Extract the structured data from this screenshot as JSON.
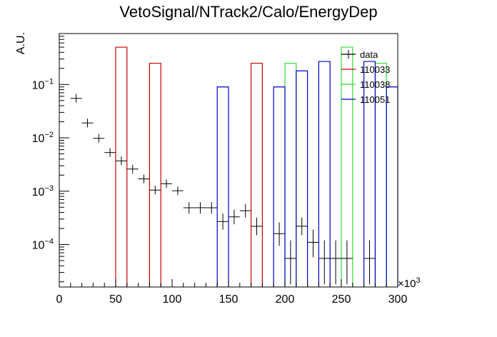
{
  "chart_data": {
    "type": "histogram",
    "title": "VetoSignal/NTrack2/Calo/EnergyDep",
    "xlabel": "",
    "ylabel": "A.U.",
    "x_multiplier_label": "×10",
    "x_multiplier_exp": "3",
    "xlim": [
      0,
      300000
    ],
    "ylim": [
      1.6e-05,
      0.9
    ],
    "yscale": "log",
    "x_ticks": [
      {
        "value": 0,
        "label": "0"
      },
      {
        "value": 50000,
        "label": "50"
      },
      {
        "value": 100000,
        "label": "100"
      },
      {
        "value": 150000,
        "label": "150"
      },
      {
        "value": 200000,
        "label": "200"
      },
      {
        "value": 250000,
        "label": "250"
      },
      {
        "value": 300000,
        "label": "300"
      }
    ],
    "y_ticks": [
      {
        "value": 0.1,
        "base": "10",
        "exp": "−1"
      },
      {
        "value": 0.01,
        "base": "10",
        "exp": "−2"
      },
      {
        "value": 0.001,
        "base": "10",
        "exp": "−3"
      },
      {
        "value": 0.0001,
        "base": "10",
        "exp": "−4"
      }
    ],
    "legend": {
      "position": "top-right",
      "entries": [
        {
          "label": "data",
          "color": "#000000",
          "style": "errorbar"
        },
        {
          "label": "110033",
          "color": "#cc0000",
          "style": "line"
        },
        {
          "label": "110038",
          "color": "#33dd33",
          "style": "line"
        },
        {
          "label": "110051",
          "color": "#0000cc",
          "style": "line"
        }
      ]
    },
    "series": [
      {
        "name": "data",
        "type": "errorbar",
        "color": "#000000",
        "bin_width": 10000,
        "points": [
          {
            "x": 15000,
            "y": 0.055,
            "ylo": 0.055,
            "yhi": 0.055
          },
          {
            "x": 25000,
            "y": 0.019,
            "ylo": 0.019,
            "yhi": 0.019
          },
          {
            "x": 35000,
            "y": 0.0098,
            "ylo": 0.0098,
            "yhi": 0.0098
          },
          {
            "x": 45000,
            "y": 0.0053,
            "ylo": 0.0053,
            "yhi": 0.0053
          },
          {
            "x": 55000,
            "y": 0.0037,
            "ylo": 0.0037,
            "yhi": 0.0037
          },
          {
            "x": 65000,
            "y": 0.0026,
            "ylo": 0.0026,
            "yhi": 0.0026
          },
          {
            "x": 75000,
            "y": 0.0017,
            "ylo": 0.00148,
            "yhi": 0.00196
          },
          {
            "x": 85000,
            "y": 0.00105,
            "ylo": 0.00088,
            "yhi": 0.00125
          },
          {
            "x": 95000,
            "y": 0.00138,
            "ylo": 0.00118,
            "yhi": 0.0016
          },
          {
            "x": 105000,
            "y": 0.00102,
            "ylo": 0.00085,
            "yhi": 0.00122
          },
          {
            "x": 115000,
            "y": 0.00049,
            "ylo": 0.00038,
            "yhi": 0.00062
          },
          {
            "x": 125000,
            "y": 0.00049,
            "ylo": 0.00038,
            "yhi": 0.00062
          },
          {
            "x": 135000,
            "y": 0.00049,
            "ylo": 0.00038,
            "yhi": 0.00062
          },
          {
            "x": 145000,
            "y": 0.00027,
            "ylo": 0.00019,
            "yhi": 0.00038
          },
          {
            "x": 155000,
            "y": 0.00033,
            "ylo": 0.00024,
            "yhi": 0.00045
          },
          {
            "x": 165000,
            "y": 0.00043,
            "ylo": 0.00032,
            "yhi": 0.00057
          },
          {
            "x": 175000,
            "y": 0.00022,
            "ylo": 0.00015,
            "yhi": 0.00032
          },
          {
            "x": 195000,
            "y": 0.00016,
            "ylo": 9.5e-05,
            "yhi": 0.00026
          },
          {
            "x": 205000,
            "y": 5.5e-05,
            "ylo": 1.8e-05,
            "yhi": 0.00012
          },
          {
            "x": 215000,
            "y": 0.00022,
            "ylo": 0.00015,
            "yhi": 0.00032
          },
          {
            "x": 225000,
            "y": 0.00011,
            "ylo": 5.8e-05,
            "yhi": 0.00019
          },
          {
            "x": 235000,
            "y": 5.5e-05,
            "ylo": 1.8e-05,
            "yhi": 0.00012
          },
          {
            "x": 245000,
            "y": 5.5e-05,
            "ylo": 1.8e-05,
            "yhi": 0.00012
          },
          {
            "x": 255000,
            "y": 5.5e-05,
            "ylo": 1.8e-05,
            "yhi": 0.00012
          },
          {
            "x": 275000,
            "y": 5.5e-05,
            "ylo": 1.8e-05,
            "yhi": 0.00012
          }
        ]
      },
      {
        "name": "110033",
        "type": "bars",
        "color": "#cc0000",
        "bins": [
          {
            "x0": 50000,
            "x1": 60000,
            "y": 0.5
          },
          {
            "x0": 80000,
            "x1": 90000,
            "y": 0.25
          },
          {
            "x0": 170000,
            "x1": 180000,
            "y": 0.25
          }
        ]
      },
      {
        "name": "110038",
        "type": "bars",
        "color": "#33dd33",
        "bins": [
          {
            "x0": 200000,
            "x1": 210000,
            "y": 0.25
          },
          {
            "x0": 250000,
            "x1": 260000,
            "y": 0.5
          },
          {
            "x0": 280000,
            "x1": 290000,
            "y": 0.25
          }
        ]
      },
      {
        "name": "110051",
        "type": "bars",
        "color": "#0000cc",
        "bins": [
          {
            "x0": 140000,
            "x1": 150000,
            "y": 0.09
          },
          {
            "x0": 190000,
            "x1": 200000,
            "y": 0.09
          },
          {
            "x0": 210000,
            "x1": 220000,
            "y": 0.18
          },
          {
            "x0": 230000,
            "x1": 240000,
            "y": 0.27
          },
          {
            "x0": 270000,
            "x1": 280000,
            "y": 0.27
          },
          {
            "x0": 290000,
            "x1": 300000,
            "y": 0.09
          }
        ]
      }
    ]
  }
}
